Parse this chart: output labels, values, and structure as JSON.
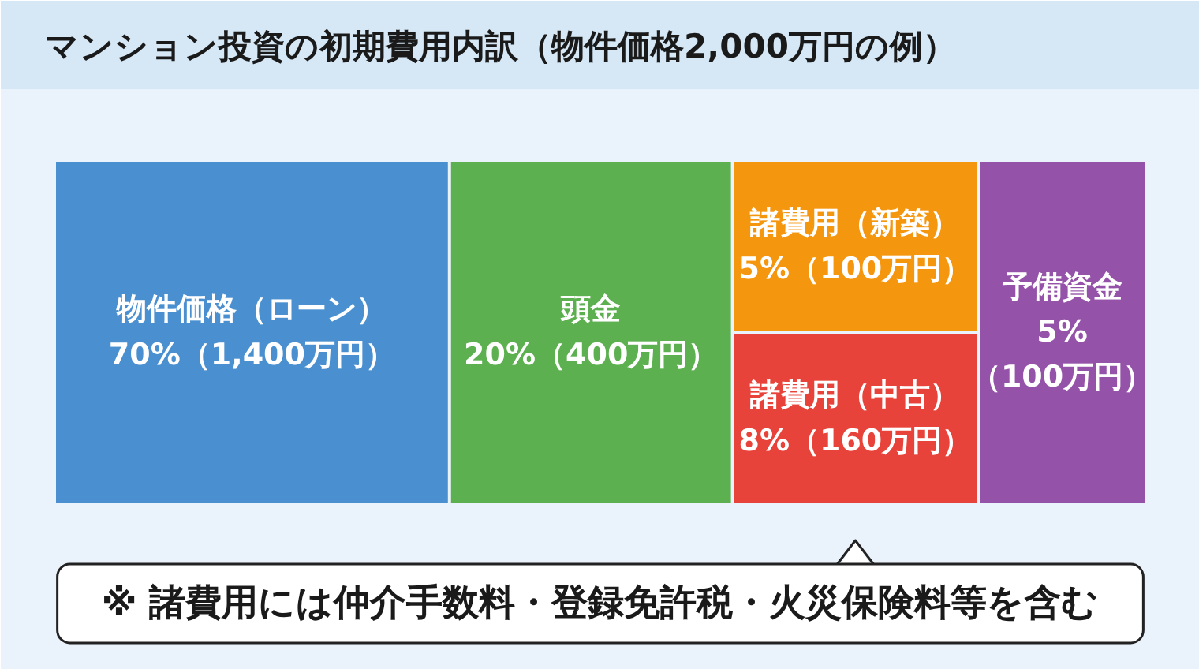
{
  "chart_data": {
    "type": "other",
    "title": "マンション投資の初期費用内訳（物件価格2,000万円の例）",
    "categories": [
      "物件価格（ローン）",
      "頭金",
      "諸費用（新築）",
      "諸費用（中古）",
      "予備資金"
    ],
    "values": [
      70,
      20,
      5,
      8,
      5
    ],
    "colors": [
      "#4a8fcf",
      "#5cb04f",
      "#f5960f",
      "#e8433a",
      "#9452a8"
    ],
    "value_labels": [
      "70%（1,400万円）",
      "20%（400万円）",
      "5%（100万円）",
      "8%（160万円）",
      "5%\n（100万円）"
    ],
    "annotations": [
      "※ 諸費用には仲介手数料・登録免許税・火災保険料等を含む"
    ]
  }
}
